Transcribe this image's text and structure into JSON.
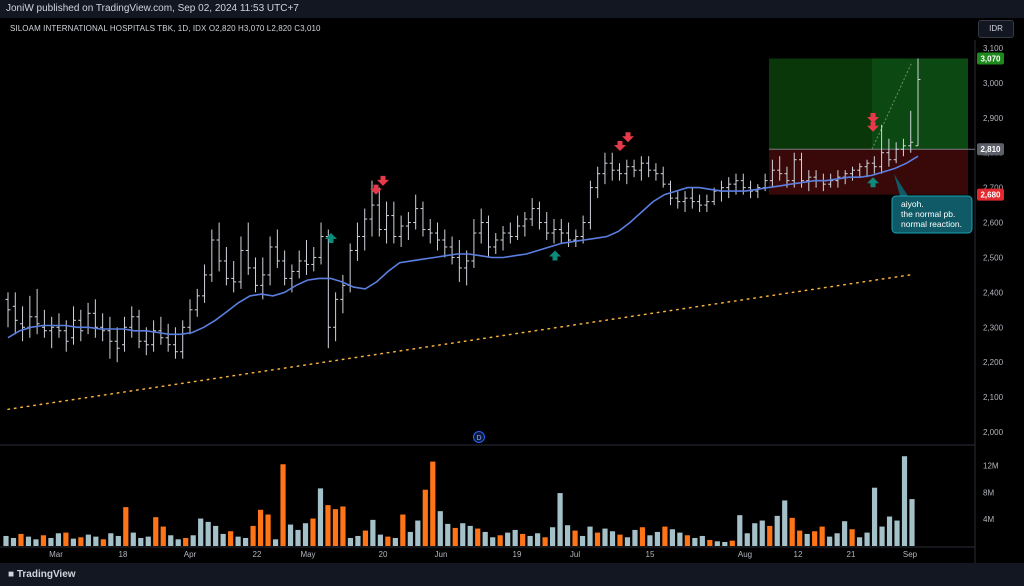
{
  "header": {
    "publisher_line": "JoniW published on TradingView.com, Sep 02, 2024 11:53 UTC+7"
  },
  "legend": {
    "symbol": "SILOAM INTERNATIONAL HOSPITALS TBK, 1D, IDX",
    "o_label": "O",
    "o": "2,820",
    "h_label": "H",
    "h": "3,070",
    "l_label": "L",
    "l": "2,820",
    "c_label": "C",
    "c": "3,010"
  },
  "currency": "IDR",
  "footer": {
    "brand": "TradingView"
  },
  "annotation": {
    "line1": "aiyoh.",
    "line2": "the normal pb.",
    "line3": "normal reaction."
  },
  "event_marker": "D",
  "colors": {
    "bar": "#d1d4dc",
    "ma": "#5b7fe0",
    "trendline": "#f5b13a",
    "vol_up": "#a4c0c8",
    "vol_down": "#ff7417",
    "profit_zone": "#0b3a0b",
    "loss_zone": "#3c0a0a",
    "up_arrow": "#0e8a7a",
    "down_arrow": "#e63a4a",
    "annotation_bg": "#0f5a66"
  },
  "chart_data": {
    "type": "bar",
    "price_axis": {
      "ticks": [
        "2,000",
        "2,100",
        "2,200",
        "2,300",
        "2,400",
        "2,500",
        "2,600",
        "2,700",
        "2,800",
        "2,900",
        "3,000",
        "3,100"
      ],
      "range": [
        1970,
        3130
      ]
    },
    "volume_axis": {
      "ticks": [
        "4M",
        "8M",
        "12M"
      ],
      "range": [
        0,
        14
      ]
    },
    "x_ticks": [
      "Mar",
      "18",
      "Apr",
      "22",
      "May",
      "20",
      "Jun",
      "19",
      "Jul",
      "15",
      "Aug",
      "12",
      "21",
      "Sep"
    ],
    "price_labels": {
      "tp": "3,070",
      "current": "2,810",
      "sl": "2,680"
    },
    "position": {
      "entry": 2810,
      "take_profit": 3070,
      "stop_loss": 2680
    },
    "trendline": {
      "start": 2065,
      "end": 2450
    },
    "ohlc": [
      [
        2380,
        2400,
        2300,
        2350
      ],
      [
        2360,
        2400,
        2280,
        2320
      ],
      [
        2310,
        2360,
        2260,
        2300
      ],
      [
        2300,
        2390,
        2270,
        2330
      ],
      [
        2330,
        2410,
        2280,
        2310
      ],
      [
        2300,
        2350,
        2270,
        2290
      ],
      [
        2290,
        2330,
        2240,
        2300
      ],
      [
        2300,
        2340,
        2270,
        2290
      ],
      [
        2290,
        2320,
        2230,
        2260
      ],
      [
        2270,
        2360,
        2250,
        2320
      ],
      [
        2320,
        2350,
        2260,
        2290
      ],
      [
        2300,
        2370,
        2280,
        2340
      ],
      [
        2340,
        2380,
        2270,
        2300
      ],
      [
        2300,
        2340,
        2260,
        2290
      ],
      [
        2290,
        2330,
        2210,
        2260
      ],
      [
        2260,
        2300,
        2200,
        2240
      ],
      [
        2250,
        2330,
        2230,
        2300
      ],
      [
        2300,
        2360,
        2270,
        2330
      ],
      [
        2330,
        2350,
        2240,
        2260
      ],
      [
        2260,
        2300,
        2220,
        2250
      ],
      [
        2250,
        2320,
        2230,
        2290
      ],
      [
        2290,
        2330,
        2250,
        2270
      ],
      [
        2270,
        2310,
        2230,
        2250
      ],
      [
        2250,
        2300,
        2210,
        2230
      ],
      [
        2230,
        2320,
        2210,
        2300
      ],
      [
        2300,
        2380,
        2280,
        2350
      ],
      [
        2350,
        2410,
        2330,
        2390
      ],
      [
        2390,
        2480,
        2370,
        2450
      ],
      [
        2450,
        2580,
        2430,
        2550
      ],
      [
        2550,
        2600,
        2460,
        2490
      ],
      [
        2490,
        2530,
        2420,
        2440
      ],
      [
        2440,
        2490,
        2400,
        2430
      ],
      [
        2430,
        2560,
        2410,
        2520
      ],
      [
        2520,
        2600,
        2450,
        2470
      ],
      [
        2470,
        2500,
        2400,
        2420
      ],
      [
        2420,
        2500,
        2380,
        2450
      ],
      [
        2450,
        2560,
        2420,
        2530
      ],
      [
        2530,
        2580,
        2470,
        2490
      ],
      [
        2490,
        2520,
        2420,
        2440
      ],
      [
        2440,
        2480,
        2400,
        2460
      ],
      [
        2460,
        2520,
        2440,
        2490
      ],
      [
        2490,
        2550,
        2450,
        2480
      ],
      [
        2480,
        2530,
        2460,
        2500
      ],
      [
        2500,
        2600,
        2480,
        2560
      ],
      [
        2560,
        2580,
        2240,
        2300
      ],
      [
        2300,
        2400,
        2260,
        2380
      ],
      [
        2380,
        2450,
        2340,
        2420
      ],
      [
        2420,
        2540,
        2400,
        2520
      ],
      [
        2520,
        2600,
        2490,
        2560
      ],
      [
        2560,
        2640,
        2520,
        2610
      ],
      [
        2610,
        2720,
        2560,
        2650
      ],
      [
        2650,
        2700,
        2560,
        2580
      ],
      [
        2580,
        2660,
        2540,
        2620
      ],
      [
        2620,
        2660,
        2540,
        2560
      ],
      [
        2560,
        2620,
        2530,
        2590
      ],
      [
        2590,
        2630,
        2550,
        2600
      ],
      [
        2600,
        2680,
        2580,
        2640
      ],
      [
        2640,
        2660,
        2560,
        2580
      ],
      [
        2580,
        2610,
        2540,
        2570
      ],
      [
        2570,
        2600,
        2520,
        2550
      ],
      [
        2550,
        2580,
        2500,
        2530
      ],
      [
        2530,
        2560,
        2480,
        2500
      ],
      [
        2500,
        2550,
        2430,
        2470
      ],
      [
        2470,
        2520,
        2420,
        2490
      ],
      [
        2490,
        2610,
        2470,
        2570
      ],
      [
        2570,
        2640,
        2540,
        2600
      ],
      [
        2600,
        2620,
        2500,
        2530
      ],
      [
        2530,
        2570,
        2510,
        2550
      ],
      [
        2550,
        2590,
        2520,
        2570
      ],
      [
        2570,
        2600,
        2540,
        2560
      ],
      [
        2560,
        2620,
        2550,
        2590
      ],
      [
        2590,
        2630,
        2560,
        2610
      ],
      [
        2610,
        2670,
        2590,
        2640
      ],
      [
        2640,
        2660,
        2580,
        2600
      ],
      [
        2600,
        2630,
        2550,
        2570
      ],
      [
        2570,
        2610,
        2540,
        2580
      ],
      [
        2580,
        2610,
        2540,
        2570
      ],
      [
        2570,
        2600,
        2530,
        2550
      ],
      [
        2550,
        2580,
        2530,
        2560
      ],
      [
        2560,
        2620,
        2540,
        2600
      ],
      [
        2600,
        2720,
        2580,
        2700
      ],
      [
        2700,
        2760,
        2670,
        2740
      ],
      [
        2740,
        2800,
        2710,
        2770
      ],
      [
        2770,
        2800,
        2720,
        2750
      ],
      [
        2750,
        2770,
        2720,
        2740
      ],
      [
        2740,
        2780,
        2710,
        2760
      ],
      [
        2760,
        2780,
        2730,
        2750
      ],
      [
        2750,
        2790,
        2720,
        2770
      ],
      [
        2770,
        2790,
        2730,
        2750
      ],
      [
        2750,
        2770,
        2720,
        2740
      ],
      [
        2740,
        2760,
        2700,
        2710
      ],
      [
        2710,
        2720,
        2650,
        2670
      ],
      [
        2670,
        2690,
        2640,
        2660
      ],
      [
        2660,
        2690,
        2630,
        2670
      ],
      [
        2670,
        2700,
        2640,
        2660
      ],
      [
        2660,
        2680,
        2630,
        2650
      ],
      [
        2650,
        2680,
        2630,
        2660
      ],
      [
        2660,
        2700,
        2650,
        2690
      ],
      [
        2690,
        2720,
        2660,
        2700
      ],
      [
        2700,
        2730,
        2670,
        2710
      ],
      [
        2710,
        2740,
        2680,
        2720
      ],
      [
        2720,
        2740,
        2680,
        2700
      ],
      [
        2700,
        2720,
        2670,
        2690
      ],
      [
        2690,
        2710,
        2670,
        2700
      ],
      [
        2700,
        2740,
        2690,
        2720
      ],
      [
        2720,
        2780,
        2700,
        2750
      ],
      [
        2750,
        2790,
        2720,
        2740
      ],
      [
        2740,
        2760,
        2700,
        2720
      ],
      [
        2720,
        2800,
        2700,
        2780
      ],
      [
        2780,
        2800,
        2700,
        2720
      ],
      [
        2720,
        2750,
        2690,
        2730
      ],
      [
        2730,
        2750,
        2700,
        2720
      ],
      [
        2720,
        2740,
        2690,
        2710
      ],
      [
        2710,
        2740,
        2700,
        2720
      ],
      [
        2720,
        2750,
        2700,
        2730
      ],
      [
        2730,
        2750,
        2710,
        2740
      ],
      [
        2740,
        2760,
        2720,
        2750
      ],
      [
        2750,
        2770,
        2730,
        2760
      ],
      [
        2760,
        2780,
        2730,
        2770
      ],
      [
        2770,
        2790,
        2740,
        2760
      ],
      [
        2760,
        2880,
        2740,
        2800
      ],
      [
        2800,
        2840,
        2760,
        2780
      ],
      [
        2780,
        2830,
        2770,
        2810
      ],
      [
        2810,
        2840,
        2790,
        2820
      ],
      [
        2820,
        2920,
        2800,
        2830
      ],
      [
        2820,
        3070,
        2820,
        3010
      ]
    ],
    "ma": [
      2270,
      2290,
      2300,
      2305,
      2305,
      2305,
      2300,
      2300,
      2295,
      2295,
      2295,
      2290,
      2290,
      2285,
      2280,
      2280,
      2285,
      2300,
      2320,
      2345,
      2370,
      2390,
      2395,
      2390,
      2400,
      2420,
      2435,
      2440,
      2440,
      2430,
      2415,
      2410,
      2430,
      2460,
      2485,
      2490,
      2495,
      2500,
      2505,
      2510,
      2510,
      2505,
      2500,
      2500,
      2505,
      2510,
      2520,
      2530,
      2540,
      2545,
      2550,
      2555,
      2560,
      2575,
      2600,
      2630,
      2660,
      2680,
      2690,
      2700,
      2700,
      2695,
      2690,
      2690,
      2690,
      2695,
      2700,
      2705,
      2710,
      2715,
      2720,
      2720,
      2725,
      2730,
      2730,
      2735,
      2745,
      2755,
      2770,
      2790
    ],
    "volume": [
      [
        1.5,
        "u"
      ],
      [
        1.2,
        "u"
      ],
      [
        1.8,
        "d"
      ],
      [
        1.4,
        "u"
      ],
      [
        1.0,
        "u"
      ],
      [
        1.6,
        "d"
      ],
      [
        1.2,
        "u"
      ],
      [
        1.9,
        "u"
      ],
      [
        2.0,
        "d"
      ],
      [
        1.1,
        "u"
      ],
      [
        1.3,
        "d"
      ],
      [
        1.7,
        "u"
      ],
      [
        1.4,
        "u"
      ],
      [
        1.0,
        "d"
      ],
      [
        1.9,
        "u"
      ],
      [
        1.5,
        "u"
      ],
      [
        5.8,
        "d"
      ],
      [
        2.0,
        "u"
      ],
      [
        1.2,
        "u"
      ],
      [
        1.4,
        "u"
      ],
      [
        4.3,
        "d"
      ],
      [
        2.9,
        "d"
      ],
      [
        1.6,
        "u"
      ],
      [
        1.0,
        "u"
      ],
      [
        1.2,
        "d"
      ],
      [
        1.6,
        "u"
      ],
      [
        4.1,
        "u"
      ],
      [
        3.6,
        "u"
      ],
      [
        3.0,
        "u"
      ],
      [
        1.8,
        "u"
      ],
      [
        2.2,
        "d"
      ],
      [
        1.4,
        "u"
      ],
      [
        1.2,
        "u"
      ],
      [
        3.0,
        "d"
      ],
      [
        5.4,
        "d"
      ],
      [
        4.7,
        "d"
      ],
      [
        1.0,
        "u"
      ],
      [
        12.2,
        "d"
      ],
      [
        3.2,
        "u"
      ],
      [
        2.4,
        "u"
      ],
      [
        3.4,
        "u"
      ],
      [
        4.1,
        "d"
      ],
      [
        8.6,
        "u"
      ],
      [
        6.1,
        "d"
      ],
      [
        5.5,
        "d"
      ],
      [
        5.9,
        "d"
      ],
      [
        1.2,
        "u"
      ],
      [
        1.5,
        "u"
      ],
      [
        2.3,
        "d"
      ],
      [
        3.9,
        "u"
      ],
      [
        1.7,
        "u"
      ],
      [
        1.4,
        "d"
      ],
      [
        1.2,
        "u"
      ],
      [
        4.7,
        "d"
      ],
      [
        2.1,
        "u"
      ],
      [
        3.8,
        "u"
      ],
      [
        8.4,
        "d"
      ],
      [
        12.6,
        "d"
      ],
      [
        5.2,
        "u"
      ],
      [
        3.3,
        "u"
      ],
      [
        2.7,
        "d"
      ],
      [
        3.4,
        "u"
      ],
      [
        3.0,
        "u"
      ],
      [
        2.6,
        "d"
      ],
      [
        2.1,
        "u"
      ],
      [
        1.3,
        "u"
      ],
      [
        1.6,
        "d"
      ],
      [
        2.0,
        "u"
      ],
      [
        2.4,
        "u"
      ],
      [
        1.8,
        "d"
      ],
      [
        1.5,
        "u"
      ],
      [
        1.9,
        "u"
      ],
      [
        1.3,
        "d"
      ],
      [
        2.8,
        "u"
      ],
      [
        7.9,
        "u"
      ],
      [
        3.1,
        "u"
      ],
      [
        2.3,
        "d"
      ],
      [
        1.5,
        "u"
      ],
      [
        2.9,
        "u"
      ],
      [
        2.0,
        "d"
      ],
      [
        2.6,
        "u"
      ],
      [
        2.2,
        "u"
      ],
      [
        1.7,
        "d"
      ],
      [
        1.3,
        "u"
      ],
      [
        2.4,
        "u"
      ],
      [
        2.8,
        "d"
      ],
      [
        1.6,
        "u"
      ],
      [
        2.1,
        "u"
      ],
      [
        2.9,
        "d"
      ],
      [
        2.5,
        "u"
      ],
      [
        2.0,
        "u"
      ],
      [
        1.6,
        "d"
      ],
      [
        1.2,
        "u"
      ],
      [
        1.5,
        "u"
      ],
      [
        0.9,
        "d"
      ],
      [
        0.7,
        "u"
      ],
      [
        0.6,
        "u"
      ],
      [
        0.8,
        "d"
      ],
      [
        4.6,
        "u"
      ],
      [
        1.9,
        "u"
      ],
      [
        3.4,
        "u"
      ],
      [
        3.8,
        "u"
      ],
      [
        3.0,
        "d"
      ],
      [
        4.5,
        "u"
      ],
      [
        6.8,
        "u"
      ],
      [
        4.2,
        "d"
      ],
      [
        2.3,
        "d"
      ],
      [
        1.8,
        "u"
      ],
      [
        2.2,
        "d"
      ],
      [
        2.9,
        "d"
      ],
      [
        1.4,
        "u"
      ],
      [
        1.9,
        "u"
      ],
      [
        3.7,
        "u"
      ],
      [
        2.5,
        "d"
      ],
      [
        1.3,
        "u"
      ],
      [
        2.0,
        "u"
      ],
      [
        8.7,
        "u"
      ],
      [
        2.9,
        "u"
      ],
      [
        4.4,
        "u"
      ],
      [
        3.8,
        "u"
      ],
      [
        13.4,
        "u"
      ],
      [
        7.0,
        "u"
      ]
    ],
    "up_arrows": [
      {
        "value": 2610
      },
      {
        "value": 2560
      },
      {
        "value": 2770
      }
    ],
    "down_arrows": [
      {
        "value": 2640
      },
      {
        "value": 2665
      },
      {
        "value": 2765
      },
      {
        "value": 2790
      },
      {
        "value": 2820
      },
      {
        "value": 2845
      }
    ]
  }
}
